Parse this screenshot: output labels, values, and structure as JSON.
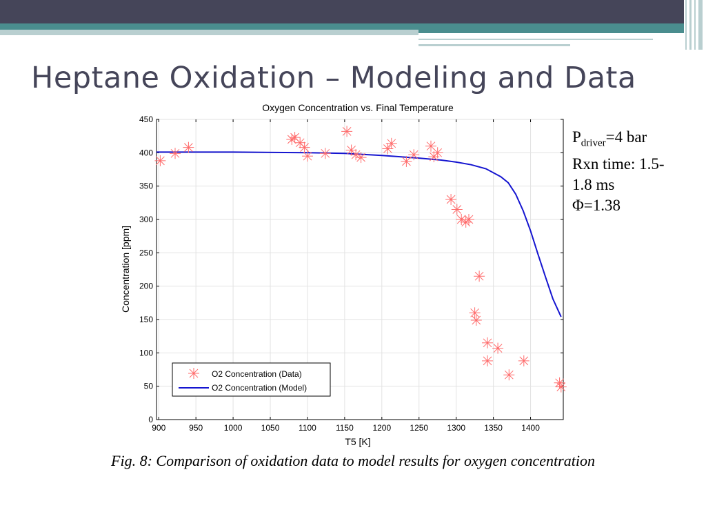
{
  "slide": {
    "title": "Heptane Oxidation – Modeling and Data",
    "caption": "Fig. 8: Comparison of oxidation data to model results for oxygen concentration"
  },
  "info": {
    "p_symbol": "P",
    "p_subscript": "driver",
    "p_value": "=4 bar",
    "rxn_line1": "Rxn time: 1.5-",
    "rxn_line2": "1.8 ms",
    "phi": "Φ=1.38"
  },
  "chart_data": {
    "type": "scatter",
    "title": "Oxygen Concentration vs. Final Temperature",
    "xlabel": "T5 [K]",
    "ylabel": "Concentration [ppm]",
    "xlim": [
      897,
      1444
    ],
    "ylim": [
      0,
      450
    ],
    "xticks": [
      900,
      950,
      1000,
      1050,
      1100,
      1150,
      1200,
      1250,
      1300,
      1350,
      1400
    ],
    "yticks": [
      0,
      50,
      100,
      150,
      200,
      250,
      300,
      350,
      400,
      450
    ],
    "grid": true,
    "legend": {
      "position": "bottom-left",
      "entries": [
        "O2 Concentration (Data)",
        "O2 Concentration (Model)"
      ]
    },
    "colors": {
      "data": "#ff6a6a",
      "model": "#1515d0"
    },
    "series": [
      {
        "name": "O2 Concentration (Data)",
        "type": "scatter",
        "points": [
          [
            902,
            388
          ],
          [
            922,
            399
          ],
          [
            940,
            408
          ],
          [
            1079,
            420
          ],
          [
            1083,
            423
          ],
          [
            1090,
            415
          ],
          [
            1096,
            408
          ],
          [
            1100,
            395
          ],
          [
            1124,
            399
          ],
          [
            1153,
            432
          ],
          [
            1159,
            404
          ],
          [
            1165,
            397
          ],
          [
            1172,
            393
          ],
          [
            1208,
            406
          ],
          [
            1213,
            414
          ],
          [
            1233,
            387
          ],
          [
            1243,
            397
          ],
          [
            1266,
            410
          ],
          [
            1270,
            394
          ],
          [
            1275,
            400
          ],
          [
            1293,
            330
          ],
          [
            1301,
            315
          ],
          [
            1307,
            300
          ],
          [
            1313,
            296
          ],
          [
            1317,
            300
          ],
          [
            1325,
            160
          ],
          [
            1327,
            149
          ],
          [
            1331,
            215
          ],
          [
            1342,
            115
          ],
          [
            1342,
            88
          ],
          [
            1356,
            107
          ],
          [
            1371,
            67
          ],
          [
            1391,
            88
          ],
          [
            1439,
            55
          ],
          [
            1441,
            49
          ]
        ]
      },
      {
        "name": "O2 Concentration (Model)",
        "type": "line",
        "points": [
          [
            897,
            401
          ],
          [
            1000,
            401
          ],
          [
            1100,
            400
          ],
          [
            1150,
            399
          ],
          [
            1200,
            396
          ],
          [
            1250,
            392
          ],
          [
            1280,
            389
          ],
          [
            1300,
            386
          ],
          [
            1320,
            382
          ],
          [
            1340,
            376
          ],
          [
            1360,
            364
          ],
          [
            1370,
            355
          ],
          [
            1380,
            338
          ],
          [
            1390,
            313
          ],
          [
            1400,
            283
          ],
          [
            1410,
            248
          ],
          [
            1420,
            214
          ],
          [
            1430,
            181
          ],
          [
            1441,
            154
          ]
        ]
      }
    ]
  }
}
